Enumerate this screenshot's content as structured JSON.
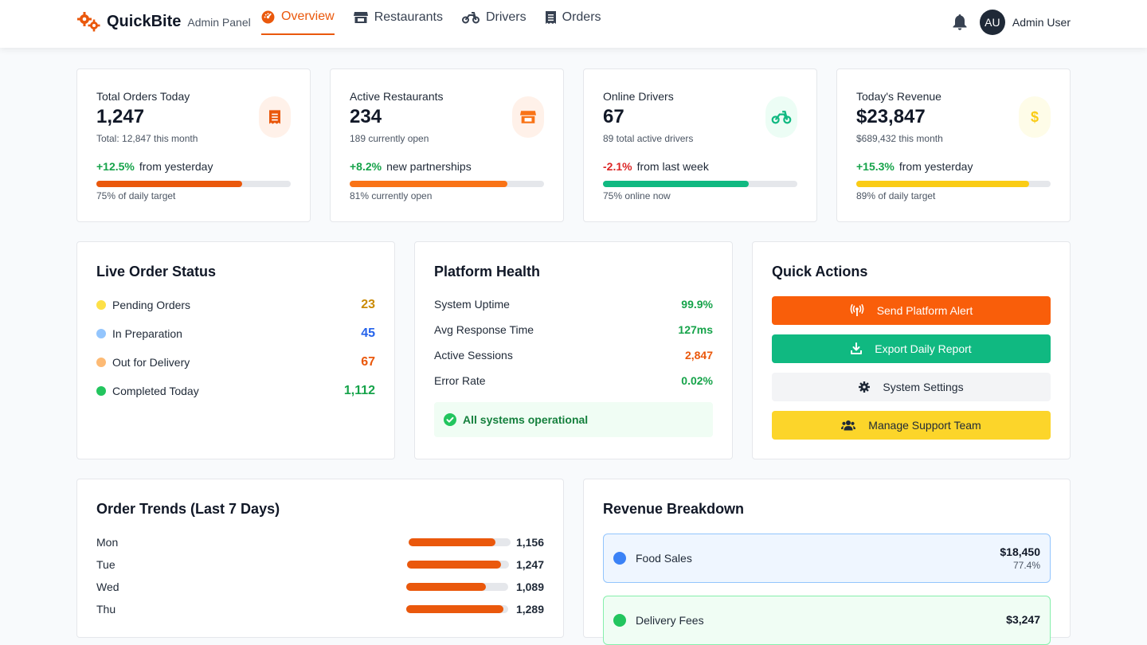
{
  "header": {
    "brand": "QuickBite",
    "subtitle": "Admin Panel",
    "nav": [
      "Overview",
      "Restaurants",
      "Drivers",
      "Orders"
    ],
    "user_initials": "AU",
    "user_name": "Admin User"
  },
  "stats": [
    {
      "label": "Total Orders Today",
      "value": "1,247",
      "sub": "Total: 12,847 this month",
      "change": "+12.5%",
      "change_text": "from yesterday",
      "change_color": "#16a34a",
      "progress": 0.75,
      "bar_color": "#ea580c",
      "foot": "75% of daily target",
      "icon": "receipt-icon",
      "icon_bg": "#fff1e9",
      "icon_color": "#ea580c"
    },
    {
      "label": "Active Restaurants",
      "value": "234",
      "sub": "189 currently open",
      "change": "+8.2%",
      "change_text": "new partnerships",
      "change_color": "#16a34a",
      "progress": 0.81,
      "bar_color": "#f97316",
      "foot": "81% currently open",
      "icon": "store-icon",
      "icon_bg": "#fff1e9",
      "icon_color": "#f97316"
    },
    {
      "label": "Online Drivers",
      "value": "67",
      "sub": "89 total active drivers",
      "change": "-2.1%",
      "change_text": "from last week",
      "change_color": "#dc2626",
      "progress": 0.75,
      "bar_color": "#10b981",
      "foot": "75% online now",
      "icon": "motorcycle-icon",
      "icon_bg": "#ecfdf5",
      "icon_color": "#10b981"
    },
    {
      "label": "Today's Revenue",
      "value": "$23,847",
      "sub": "$689,432 this month",
      "change": "+15.3%",
      "change_text": "from yesterday",
      "change_color": "#16a34a",
      "progress": 0.89,
      "bar_color": "#facc15",
      "foot": "89% of daily target",
      "icon": "dollar-icon",
      "icon_bg": "#fefce8",
      "icon_color": "#facc15"
    }
  ],
  "live_status": {
    "title": "Live Order Status",
    "items": [
      {
        "label": "Pending Orders",
        "value": "23",
        "dot": "#fde047",
        "color": "#ca8a04"
      },
      {
        "label": "In Preparation",
        "value": "45",
        "dot": "#93c5fd",
        "color": "#2563eb"
      },
      {
        "label": "Out for Delivery",
        "value": "67",
        "dot": "#fdba74",
        "color": "#ea580c"
      },
      {
        "label": "Completed Today",
        "value": "1,112",
        "dot": "#22c55e",
        "color": "#16a34a"
      }
    ]
  },
  "health": {
    "title": "Platform Health",
    "items": [
      {
        "label": "System Uptime",
        "value": "99.9%",
        "color": "#16a34a"
      },
      {
        "label": "Avg Response Time",
        "value": "127ms",
        "color": "#16a34a"
      },
      {
        "label": "Active Sessions",
        "value": "2,847",
        "color": "#ea580c"
      },
      {
        "label": "Error Rate",
        "value": "0.02%",
        "color": "#16a34a"
      }
    ],
    "status": "All systems operational"
  },
  "quick_actions": {
    "title": "Quick Actions",
    "buttons": [
      {
        "label": "Send Platform Alert",
        "icon": "broadcast-icon",
        "bg": "#f95e0a",
        "color": "#ffffff"
      },
      {
        "label": "Export Daily Report",
        "icon": "download-icon",
        "bg": "#10b981",
        "color": "#ffffff"
      },
      {
        "label": "System Settings",
        "icon": "gear-icon",
        "bg": "#f3f4f6",
        "color": "#1f2937"
      },
      {
        "label": "Manage Support Team",
        "icon": "users-icon",
        "bg": "#fcd52a",
        "color": "#1f2937"
      }
    ]
  },
  "trends": {
    "title": "Order Trends (Last 7 Days)",
    "items": [
      {
        "day": "Mon",
        "value": "1,156",
        "fill": 0.85
      },
      {
        "day": "Tue",
        "value": "1,247",
        "fill": 0.92
      },
      {
        "day": "Wed",
        "value": "1,089",
        "fill": 0.78
      },
      {
        "day": "Thu",
        "value": "1,289",
        "fill": 0.95
      }
    ]
  },
  "revenue": {
    "title": "Revenue Breakdown",
    "items": [
      {
        "name": "Food Sales",
        "amount": "$18,450",
        "pct": "77.4%",
        "dot": "#3b82f6",
        "bg": "#eff6ff",
        "border": "#93c5fd"
      },
      {
        "name": "Delivery Fees",
        "amount": "$3,247",
        "pct": "",
        "dot": "#22c55e",
        "bg": "#f0fdf4",
        "border": "#86efac"
      }
    ]
  }
}
